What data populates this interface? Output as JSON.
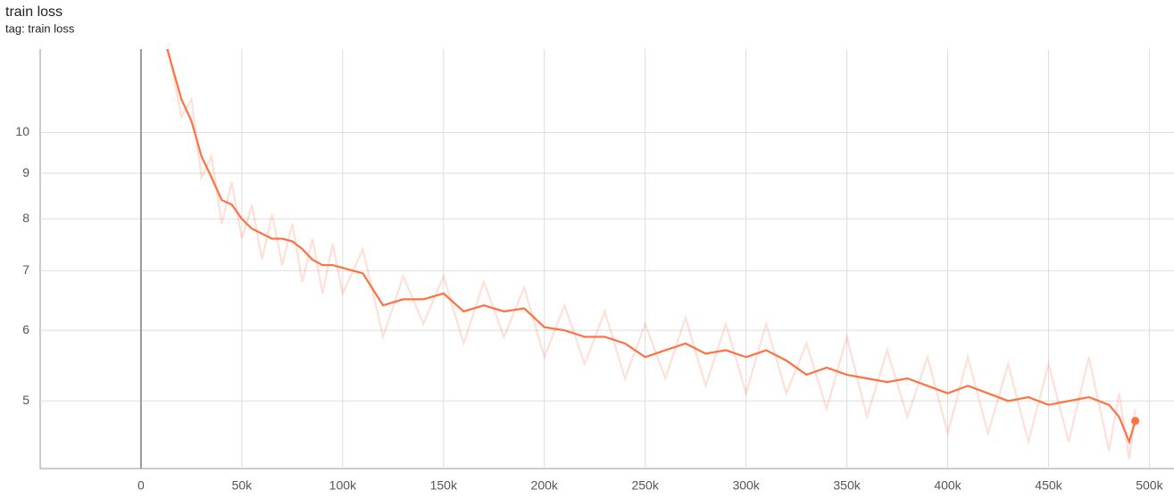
{
  "chart_data": {
    "type": "line",
    "title": "train loss",
    "subtitle": "tag: train loss",
    "x": [
      13000,
      20000,
      25000,
      30000,
      35000,
      40000,
      45000,
      50000,
      55000,
      60000,
      65000,
      70000,
      75000,
      80000,
      85000,
      90000,
      95000,
      100000,
      110000,
      120000,
      130000,
      140000,
      150000,
      160000,
      170000,
      180000,
      190000,
      200000,
      210000,
      220000,
      230000,
      240000,
      250000,
      260000,
      270000,
      280000,
      290000,
      300000,
      310000,
      320000,
      330000,
      340000,
      350000,
      360000,
      370000,
      380000,
      390000,
      400000,
      410000,
      420000,
      430000,
      440000,
      450000,
      460000,
      470000,
      480000,
      485000,
      490000,
      493000
    ],
    "series": [
      {
        "color": "#ff7043",
        "opacity": 0.22,
        "values": [
          12.6,
          10.4,
          10.9,
          8.9,
          9.4,
          7.9,
          8.8,
          7.6,
          8.3,
          7.2,
          8.1,
          7.1,
          7.9,
          6.8,
          7.6,
          6.6,
          7.5,
          6.6,
          7.4,
          5.9,
          6.9,
          6.1,
          6.9,
          5.8,
          6.8,
          5.9,
          6.7,
          5.6,
          6.4,
          5.5,
          6.3,
          5.3,
          6.1,
          5.3,
          6.2,
          5.2,
          6.1,
          5.1,
          6.1,
          5.1,
          5.8,
          4.9,
          5.9,
          4.8,
          5.7,
          4.8,
          5.6,
          4.6,
          5.6,
          4.6,
          5.5,
          4.5,
          5.5,
          4.5,
          5.6,
          4.4,
          5.1,
          4.3,
          4.9
        ]
      },
      {
        "color": "#ff7043",
        "opacity": 1,
        "values": [
          12.4,
          10.9,
          10.3,
          9.4,
          8.9,
          8.4,
          8.3,
          8.0,
          7.8,
          7.7,
          7.6,
          7.6,
          7.55,
          7.4,
          7.2,
          7.1,
          7.1,
          7.05,
          6.95,
          6.4,
          6.5,
          6.5,
          6.6,
          6.3,
          6.4,
          6.3,
          6.35,
          6.05,
          6.0,
          5.9,
          5.9,
          5.8,
          5.6,
          5.7,
          5.8,
          5.65,
          5.7,
          5.6,
          5.7,
          5.55,
          5.35,
          5.45,
          5.35,
          5.3,
          5.25,
          5.3,
          5.2,
          5.1,
          5.2,
          5.1,
          5.0,
          5.05,
          4.95,
          5.0,
          5.05,
          4.95,
          4.8,
          4.5,
          4.75
        ]
      }
    ],
    "log_y": true,
    "grid": true,
    "xlim": [
      -50000,
      510000
    ],
    "xticks": [
      0,
      {
        "value": 50000,
        "label": "50k"
      },
      {
        "value": 100000,
        "label": "100k"
      },
      {
        "value": 150000,
        "label": "150k"
      },
      {
        "value": 200000,
        "label": "200k"
      },
      {
        "value": 250000,
        "label": "250k"
      },
      {
        "value": 300000,
        "label": "300k"
      },
      {
        "value": 350000,
        "label": "350k"
      },
      {
        "value": 400000,
        "label": "400k"
      },
      {
        "value": 450000,
        "label": "450k"
      },
      {
        "value": 500000,
        "label": "500k"
      }
    ],
    "ylim": [
      4.2,
      12.4
    ],
    "yticks": [
      5,
      6,
      7,
      8,
      9,
      10
    ]
  }
}
